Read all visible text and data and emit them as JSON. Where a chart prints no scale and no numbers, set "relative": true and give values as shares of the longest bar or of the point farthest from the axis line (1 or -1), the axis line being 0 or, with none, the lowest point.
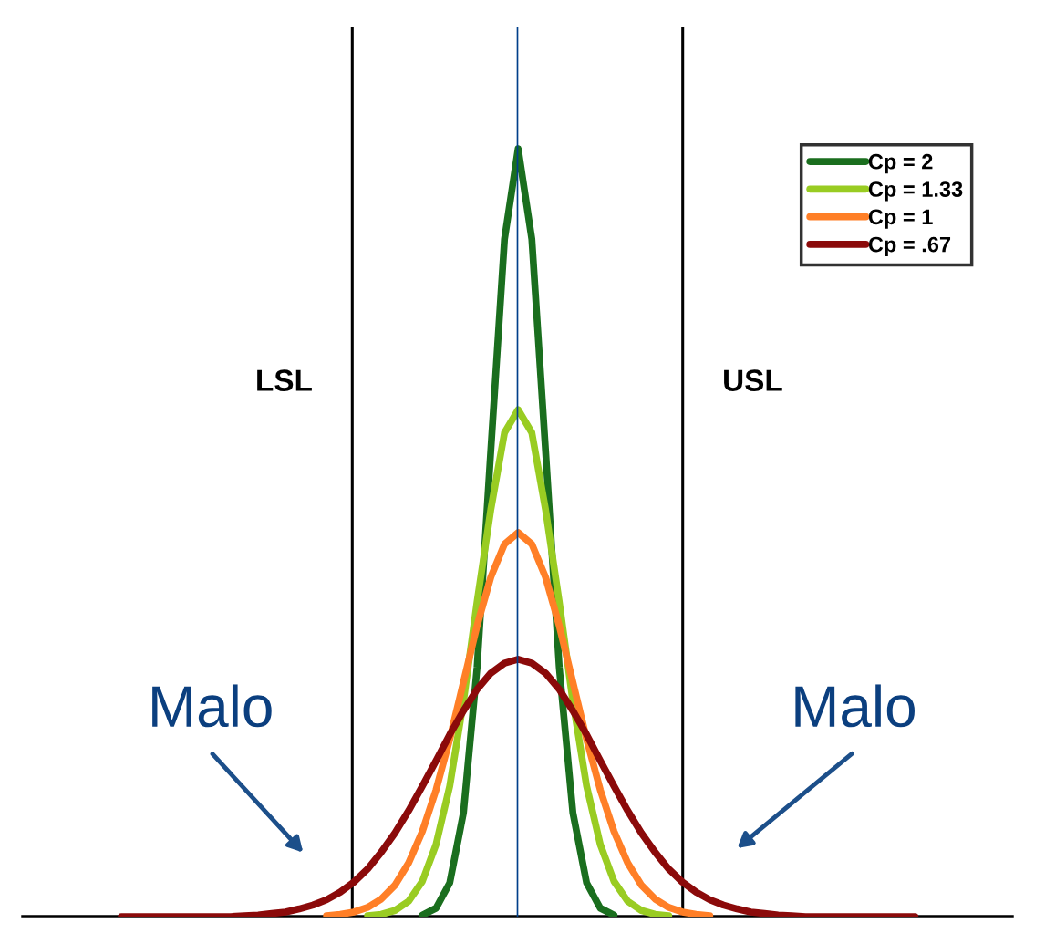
{
  "chart_data": {
    "type": "line",
    "relative": true,
    "legend": "top right",
    "categories": [
      null,
      null,
      null,
      null,
      null,
      null,
      null,
      null,
      null,
      null,
      null,
      null,
      null,
      null,
      null,
      null,
      null,
      null,
      null,
      null,
      null,
      null,
      null,
      null,
      null,
      null,
      null,
      null,
      null,
      null,
      null,
      null,
      null,
      null,
      null,
      null,
      null,
      null,
      null,
      null,
      null,
      null,
      null,
      null,
      null,
      null,
      null,
      null,
      null,
      null,
      null,
      null,
      null,
      null,
      null,
      null,
      null,
      null,
      null,
      null,
      null,
      null,
      null,
      null,
      null,
      null,
      null,
      null,
      null,
      null,
      null,
      null,
      null
    ],
    "series": [
      {
        "name": "Cp = 2",
        "color": "#1a6e1e",
        "values": [
          null,
          null,
          null,
          null,
          null,
          null,
          null,
          null,
          null,
          null,
          null,
          null,
          null,
          null,
          null,
          null,
          null,
          null,
          null,
          null,
          null,
          null,
          null,
          null,
          null,
          null,
          null,
          null,
          null,
          0.002,
          0.011,
          0.044,
          0.135,
          0.325,
          0.607,
          0.882,
          1,
          0.882,
          0.607,
          0.325,
          0.135,
          0.044,
          0.011,
          0.002,
          null,
          null,
          null,
          null,
          null,
          null,
          null,
          null,
          null,
          null,
          null,
          null,
          null,
          null,
          null,
          null,
          null,
          null,
          null,
          null,
          null,
          null,
          null,
          null,
          null,
          null,
          null,
          null,
          null
        ]
      },
      {
        "name": "Cp = 1.33",
        "color": "#99cc22",
        "values": [
          null,
          null,
          null,
          null,
          null,
          null,
          null,
          null,
          null,
          null,
          null,
          null,
          null,
          null,
          null,
          null,
          null,
          null,
          null,
          null,
          null,
          null,
          null,
          null,
          null,
          0.001,
          0.003,
          0.008,
          0.02,
          0.046,
          0.094,
          0.17,
          0.28,
          0.41,
          0.53,
          0.63,
          0.66,
          0.63,
          0.53,
          0.41,
          0.28,
          0.17,
          0.094,
          0.046,
          0.02,
          0.008,
          0.003,
          0.001,
          null,
          null,
          null,
          null,
          null,
          null,
          null,
          null,
          null,
          null,
          null,
          null,
          null,
          null,
          null,
          null,
          null,
          null,
          null,
          null,
          null,
          null,
          null,
          null,
          null
        ]
      },
      {
        "name": "Cp = 1",
        "color": "#ff7f27",
        "values": [
          null,
          null,
          null,
          null,
          null,
          null,
          null,
          null,
          null,
          null,
          null,
          null,
          null,
          null,
          null,
          null,
          null,
          null,
          null,
          null,
          null,
          null,
          0.001,
          0.003,
          0.006,
          0.012,
          0.023,
          0.041,
          0.07,
          0.111,
          0.165,
          0.231,
          0.305,
          0.379,
          0.442,
          0.485,
          0.5,
          0.485,
          0.442,
          0.379,
          0.305,
          0.231,
          0.165,
          0.111,
          0.07,
          0.041,
          0.023,
          0.012,
          0.006,
          0.003,
          0.001,
          null,
          null,
          null,
          null,
          null,
          null,
          null,
          null,
          null,
          null,
          null,
          null,
          null,
          null,
          null,
          null,
          null,
          null,
          null,
          null,
          null,
          null
        ]
      },
      {
        "name": "Cp = .67",
        "color": "#8b0a0a",
        "values": [
          null,
          null,
          null,
          null,
          null,
          null,
          null,
          0,
          0,
          0,
          0,
          0,
          0,
          0,
          0,
          0,
          0.001,
          0.002,
          0.004,
          0.006,
          0.01,
          0.015,
          0.022,
          0.032,
          0.045,
          0.062,
          0.084,
          0.109,
          0.138,
          0.17,
          0.203,
          0.237,
          0.268,
          0.296,
          0.317,
          0.33,
          0.335,
          0.33,
          0.317,
          0.296,
          0.268,
          0.237,
          0.203,
          0.17,
          0.138,
          0.109,
          0.084,
          0.062,
          0.045,
          0.032,
          0.022,
          0.015,
          0.01,
          0.006,
          0.004,
          0.002,
          0.001,
          0,
          0,
          0,
          0,
          0,
          0,
          0,
          0,
          0,
          null,
          null,
          null,
          null,
          null,
          null,
          null
        ]
      }
    ],
    "ref_lines": [
      {
        "axis": "x",
        "label": "LSL",
        "color": "#000000"
      },
      {
        "axis": "x",
        "label": "USL",
        "color": "#000000"
      },
      {
        "axis": "x",
        "color": "#003f8a"
      }
    ],
    "annotations": [
      "Malo",
      "Malo"
    ]
  }
}
